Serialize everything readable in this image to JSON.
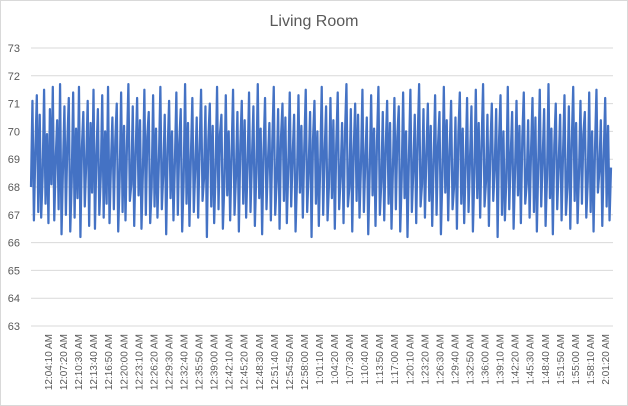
{
  "chart_data": {
    "type": "line",
    "title": "Living Room",
    "xlabel": "",
    "ylabel": "",
    "ylim": [
      63,
      73
    ],
    "yticks": [
      63,
      64,
      65,
      66,
      67,
      68,
      69,
      70,
      71,
      72,
      73
    ],
    "grid": true,
    "legend": "none",
    "series_color": "#4472C4",
    "x_tick_labels": [
      "12:04:10 AM",
      "12:07:20 AM",
      "12:10:30 AM",
      "12:13:40 AM",
      "12:16:50 AM",
      "12:20:00 AM",
      "12:23:10 AM",
      "12:26:20 AM",
      "12:29:30 AM",
      "12:32:40 AM",
      "12:35:50 AM",
      "12:39:00 AM",
      "12:42:10 AM",
      "12:45:20 AM",
      "12:48:30 AM",
      "12:51:40 AM",
      "12:54:50 AM",
      "12:58:00 AM",
      "1:01:10 AM",
      "1:04:20 AM",
      "1:07:30 AM",
      "1:10:40 AM",
      "1:13:50 AM",
      "1:17:00 AM",
      "1:20:10 AM",
      "1:23:20 AM",
      "1:26:30 AM",
      "1:29:40 AM",
      "1:32:50 AM",
      "1:36:00 AM",
      "1:39:10 AM",
      "1:42:20 AM",
      "1:45:30 AM",
      "1:48:40 AM",
      "1:51:50 AM",
      "1:55:00 AM",
      "1:58:10 AM",
      "2:01:20 AM"
    ],
    "series": [
      {
        "values": [
          68.0,
          71.1,
          66.8,
          69.3,
          71.3,
          67.1,
          70.6,
          66.9,
          68.4,
          71.5,
          67.4,
          69.9,
          66.7,
          70.8,
          68.1,
          71.6,
          66.8,
          69.0,
          70.4,
          67.2,
          71.7,
          66.3,
          68.7,
          70.9,
          67.0,
          69.6,
          71.2,
          66.4,
          68.2,
          71.4,
          66.9,
          70.1,
          67.6,
          71.6,
          66.2,
          69.4,
          70.7,
          67.3,
          68.9,
          71.1,
          66.6,
          70.3,
          67.8,
          71.5,
          66.5,
          69.1,
          70.8,
          67.0,
          68.4,
          71.3,
          66.9,
          70.0,
          67.4,
          71.6,
          66.7,
          68.8,
          70.5,
          67.2,
          69.7,
          71.0,
          66.4,
          68.3,
          71.4,
          67.1,
          70.2,
          66.8,
          69.5,
          71.7,
          67.5,
          68.1,
          70.9,
          66.6,
          69.2,
          71.2,
          67.7,
          70.4,
          66.5,
          68.6,
          71.5,
          67.0,
          69.8,
          70.7,
          66.7,
          68.0,
          71.3,
          67.3,
          70.1,
          66.9,
          69.0,
          71.6,
          67.2,
          68.5,
          70.6,
          66.3,
          69.3,
          71.1,
          67.6,
          70.0,
          66.8,
          68.9,
          71.4,
          67.0,
          69.6,
          70.8,
          66.4,
          68.2,
          71.7,
          67.4,
          70.3,
          66.6,
          69.1,
          71.2,
          67.1,
          68.7,
          70.5,
          66.9,
          69.4,
          71.5,
          67.5,
          68.3,
          70.9,
          66.2,
          69.7,
          71.0,
          67.3,
          70.2,
          66.7,
          68.6,
          71.6,
          67.2,
          69.9,
          70.6,
          66.5,
          68.1,
          71.3,
          67.7,
          70.0,
          66.8,
          69.2,
          71.5,
          67.0,
          68.4,
          70.7,
          66.4,
          69.5,
          71.1,
          67.4,
          70.4,
          66.9,
          68.8,
          71.4,
          67.1,
          69.0,
          70.9,
          66.6,
          68.5,
          71.7,
          67.6,
          70.1,
          66.3,
          69.3,
          71.2,
          67.2,
          68.9,
          70.3,
          66.8,
          69.6,
          71.6,
          67.0,
          68.2,
          70.8,
          66.5,
          69.8,
          71.0,
          67.5,
          70.5,
          66.7,
          68.7,
          71.4,
          67.3,
          69.1,
          70.6,
          66.4,
          68.3,
          71.3,
          67.8,
          70.2,
          66.9,
          69.4,
          71.5,
          67.1,
          68.6,
          70.7,
          66.2,
          69.7,
          71.1,
          67.4,
          70.0,
          66.6,
          68.9,
          71.6,
          67.0,
          69.2,
          70.9,
          66.8,
          68.1,
          71.2,
          67.6,
          70.4,
          66.5,
          69.5,
          71.4,
          67.2,
          68.4,
          70.3,
          66.7,
          69.9,
          71.7,
          67.3,
          68.0,
          70.8,
          66.4,
          69.3,
          71.0,
          67.5,
          70.6,
          66.9,
          68.8,
          71.5,
          67.1,
          69.0,
          70.5,
          66.3,
          68.5,
          71.3,
          67.7,
          70.1,
          66.6,
          69.6,
          71.6,
          67.0,
          68.2,
          70.7,
          66.8,
          69.4,
          71.1,
          67.4,
          70.3,
          66.5,
          68.7,
          71.2,
          67.2,
          69.8,
          70.9,
          66.4,
          68.3,
          71.4,
          67.6,
          70.0,
          66.2,
          69.1,
          71.5,
          67.1,
          68.6,
          70.6,
          66.7,
          69.7,
          71.7,
          67.3,
          68.1,
          70.8,
          66.9,
          69.2,
          71.0,
          67.5,
          70.2,
          66.6,
          68.9,
          71.3,
          67.0,
          69.5,
          70.7,
          66.3,
          68.4,
          71.6,
          67.8,
          70.4,
          66.8,
          69.3,
          71.1,
          67.2,
          68.0,
          70.5,
          66.5,
          69.9,
          71.4,
          67.4,
          70.1,
          66.7,
          68.8,
          71.2,
          67.1,
          69.0,
          70.9,
          66.4,
          68.5,
          71.5,
          67.6,
          70.3,
          66.9,
          69.6,
          71.7,
          67.3,
          68.2,
          70.6,
          66.6,
          69.4,
          71.0,
          67.5,
          68.7,
          70.8,
          66.2,
          69.7,
          71.3,
          67.0,
          70.0,
          66.8,
          68.3,
          71.6,
          67.2,
          69.1,
          70.7,
          66.5,
          68.6,
          71.1,
          67.7,
          70.2,
          66.7,
          69.8,
          71.4,
          67.4,
          68.1,
          70.4,
          66.9,
          69.3,
          71.2,
          67.1,
          70.5,
          66.4,
          68.9,
          71.5,
          67.3,
          69.0,
          70.8,
          66.6,
          68.4,
          71.7,
          67.6,
          70.1,
          66.3,
          69.5,
          71.0,
          67.2,
          68.8,
          70.6,
          66.8,
          69.2,
          71.3,
          67.0,
          68.0,
          70.9,
          66.5,
          69.6,
          71.6,
          67.5,
          70.3,
          66.7,
          68.5,
          71.1,
          67.4,
          69.9,
          70.7,
          66.9,
          68.2,
          71.4,
          67.1,
          70.0,
          66.4,
          69.4,
          71.5,
          67.8,
          68.6,
          70.4,
          66.6,
          69.1,
          71.2,
          67.3,
          70.2,
          66.8,
          68.7
        ]
      }
    ]
  }
}
